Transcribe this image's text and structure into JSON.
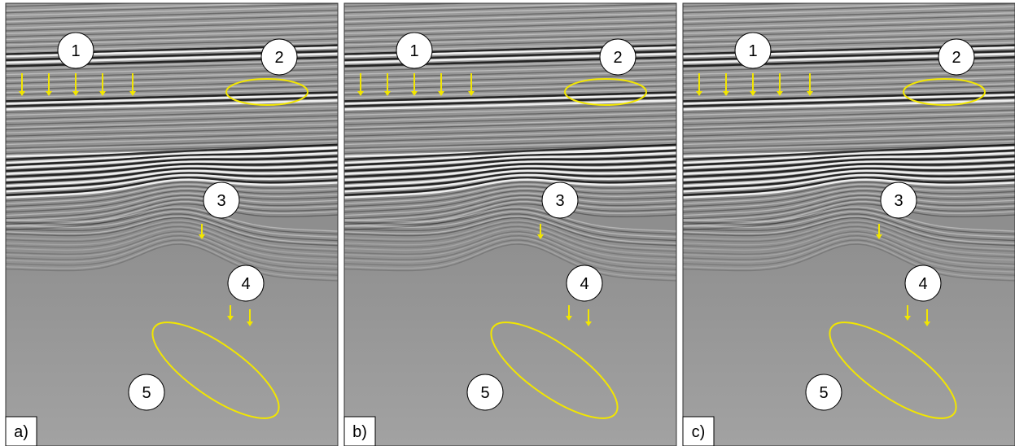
{
  "panels": [
    {
      "label": "a)",
      "callouts": [
        "1",
        "2",
        "3",
        "4",
        "5"
      ]
    },
    {
      "label": "b)",
      "callouts": [
        "1",
        "2",
        "3",
        "4",
        "5"
      ]
    },
    {
      "label": "c)",
      "callouts": [
        "1",
        "2",
        "3",
        "4",
        "5"
      ]
    }
  ]
}
